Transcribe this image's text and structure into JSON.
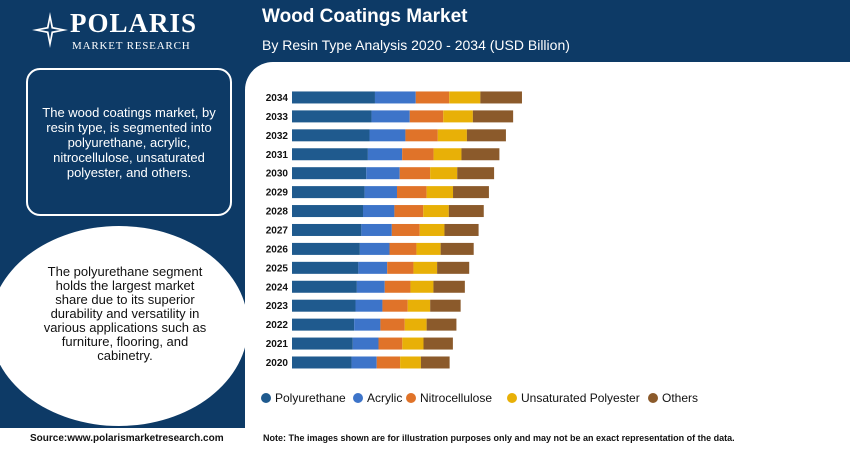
{
  "brand": {
    "name": "POLARIS",
    "tagline": "MARKET RESEARCH"
  },
  "title": "Wood Coatings Market",
  "subtitle": "By Resin Type Analysis 2020 - 2034 (USD Billion)",
  "panel": {
    "box_text": "The wood coatings market, by resin type, is segmented into polyurethane, acrylic, nitrocellulose, unsaturated polyester, and others.",
    "circle_text": "The polyurethane segment holds the largest market share due to its superior durability and versatility in various applications such as furniture, flooring, and cabinetry."
  },
  "footer": {
    "source": "Source:www.polarismarketresearch.com",
    "note": "Note: The images shown are for illustration purposes only and may not be an exact representation of the data."
  },
  "colors": {
    "polyurethane": "#1f5a8e",
    "acrylic": "#3d74c9",
    "nitrocellulose": "#e07329",
    "unsaturated_polyester": "#e8b007",
    "others": "#8b5a2b"
  },
  "chart_data": {
    "type": "bar",
    "orientation": "horizontal",
    "stacked": true,
    "title": "Wood Coatings Market",
    "xlabel": "",
    "ylabel": "",
    "legend_position": "bottom",
    "grid": false,
    "categories": [
      "2034",
      "2033",
      "2032",
      "2031",
      "2030",
      "2029",
      "2028",
      "2027",
      "2026",
      "2025",
      "2024",
      "2023",
      "2022",
      "2021",
      "2020"
    ],
    "series": [
      {
        "name": "Polyurethane",
        "color": "#1f5a8e",
        "values": [
          6.1,
          5.85,
          5.7,
          5.58,
          5.46,
          5.34,
          5.22,
          5.1,
          4.99,
          4.88,
          4.77,
          4.67,
          4.57,
          4.47,
          4.38
        ]
      },
      {
        "name": "Acrylic",
        "color": "#3d74c9",
        "values": [
          3.0,
          2.81,
          2.64,
          2.52,
          2.46,
          2.38,
          2.31,
          2.24,
          2.18,
          2.12,
          2.05,
          1.98,
          1.93,
          1.89,
          1.85
        ]
      },
      {
        "name": "Nitrocellulose",
        "color": "#e07329",
        "values": [
          2.46,
          2.46,
          2.38,
          2.31,
          2.24,
          2.18,
          2.12,
          2.05,
          1.98,
          1.93,
          1.89,
          1.86,
          1.79,
          1.75,
          1.72
        ]
      },
      {
        "name": "Unsaturated Polyester",
        "color": "#e8b007",
        "values": [
          2.29,
          2.18,
          2.14,
          2.05,
          1.99,
          1.94,
          1.88,
          1.82,
          1.78,
          1.74,
          1.69,
          1.65,
          1.61,
          1.56,
          1.53
        ]
      },
      {
        "name": "Others",
        "color": "#8b5a2b",
        "values": [
          3.06,
          2.96,
          2.87,
          2.79,
          2.71,
          2.64,
          2.57,
          2.51,
          2.43,
          2.36,
          2.31,
          2.24,
          2.19,
          2.16,
          2.11
        ]
      }
    ]
  }
}
